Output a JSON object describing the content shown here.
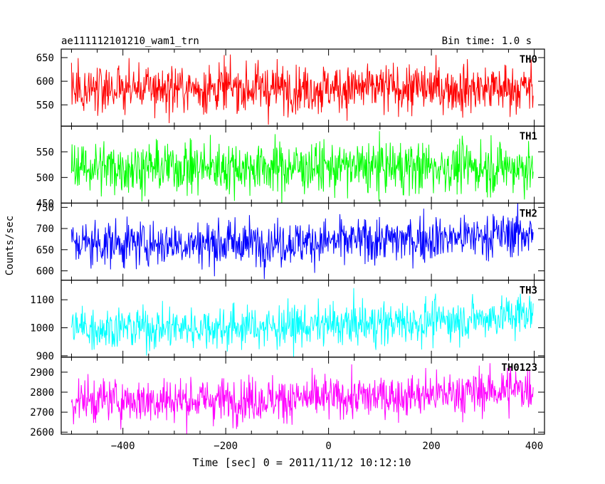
{
  "header": {
    "title": "ae111112101210_wam1_trn",
    "bin_time": "Bin time: 1.0 s"
  },
  "axes": {
    "ylabel": "Counts/sec",
    "xlabel": "Time [sec] 0 = 2011/11/12 10:12:10",
    "xlim": [
      -520,
      420
    ],
    "xticks": [
      -400,
      -200,
      0,
      200,
      400
    ],
    "xtick_labels": [
      "−400",
      "−200",
      "0",
      "200",
      "400"
    ]
  },
  "chart_data": {
    "type": "line",
    "x_range": [
      -500,
      398
    ],
    "bin_seconds": 1.0,
    "panels": [
      {
        "name": "TH0",
        "color": "#ff0000",
        "ylim": [
          505,
          668
        ],
        "yticks": [
          550,
          600,
          650
        ],
        "mean": 585,
        "spread": 26,
        "end_level": 585
      },
      {
        "name": "TH1",
        "color": "#00ff00",
        "ylim": [
          450,
          600
        ],
        "yticks": [
          450,
          500,
          550
        ],
        "mean": 520,
        "spread": 25,
        "end_level": 520
      },
      {
        "name": "TH2",
        "color": "#0000ff",
        "ylim": [
          578,
          760
        ],
        "yticks": [
          600,
          650,
          700,
          750
        ],
        "mean": 665,
        "spread": 27,
        "end_level": 690
      },
      {
        "name": "TH3",
        "color": "#00ffff",
        "ylim": [
          895,
          1170
        ],
        "yticks": [
          900,
          1000,
          1100
        ],
        "mean": 1000,
        "spread": 38,
        "end_level": 1050
      },
      {
        "name": "TH0123",
        "color": "#ff00ff",
        "ylim": [
          2590,
          2975
        ],
        "yticks": [
          2600,
          2700,
          2800,
          2900
        ],
        "mean": 2760,
        "spread": 55,
        "end_level": 2820
      }
    ]
  }
}
